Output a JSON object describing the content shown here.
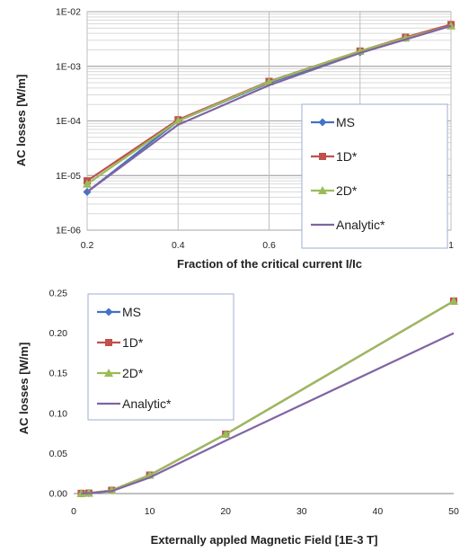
{
  "chart_data": [
    {
      "type": "line",
      "xlabel": "Fraction of the critical current I/Ic",
      "ylabel": "AC losses [W/m]",
      "yscale": "log",
      "xlim": [
        0.2,
        1.0
      ],
      "ylim": [
        1e-06,
        0.01
      ],
      "xticks": [
        "0.2",
        "0.4",
        "0.6",
        "0.8",
        "1"
      ],
      "yticks": [
        "1E-06",
        "1E-05",
        "1E-04",
        "1E-03",
        "1E-02"
      ],
      "grid": true,
      "legend_position": "right",
      "series": [
        {
          "name": "MS",
          "color": "#4472C4",
          "marker": "diamond",
          "x": [
            0.2,
            0.4,
            0.6,
            0.8,
            0.9,
            1.0
          ],
          "y": [
            5e-06,
            0.0001,
            0.0005,
            0.0018,
            0.0033,
            0.0058
          ]
        },
        {
          "name": "1D*",
          "color": "#C0504D",
          "marker": "square",
          "x": [
            0.2,
            0.4,
            0.6,
            0.8,
            0.9,
            1.0
          ],
          "y": [
            8e-06,
            0.000105,
            0.00053,
            0.0019,
            0.0034,
            0.0058
          ]
        },
        {
          "name": "2D*",
          "color": "#9BBB59",
          "marker": "triangle",
          "x": [
            0.2,
            0.4,
            0.6,
            0.8,
            0.9,
            1.0
          ],
          "y": [
            7e-06,
            0.0001,
            0.00052,
            0.0019,
            0.0033,
            0.0055
          ]
        },
        {
          "name": "Analytic*",
          "color": "#8064A2",
          "marker": "none",
          "x": [
            0.2,
            0.4,
            0.6,
            0.8,
            1.0
          ],
          "y": [
            5e-06,
            8.5e-05,
            0.00045,
            0.00175,
            0.0055
          ]
        }
      ]
    },
    {
      "type": "line",
      "xlabel": "Externally appled Magnetic Field [1E-3 T]",
      "ylabel": "AC losses [W/m]",
      "xlim": [
        0,
        50
      ],
      "ylim": [
        0,
        0.25
      ],
      "xticks": [
        "0",
        "10",
        "20",
        "30",
        "40",
        "50"
      ],
      "yticks": [
        "0.00",
        "0.05",
        "0.10",
        "0.15",
        "0.20",
        "0.25"
      ],
      "grid": false,
      "legend_position": "top-left",
      "series": [
        {
          "name": "MS",
          "color": "#4472C4",
          "marker": "diamond",
          "x": [
            1,
            2,
            5,
            10,
            20,
            50
          ],
          "y": [
            0.0002,
            0.0005,
            0.004,
            0.023,
            0.074,
            0.24
          ]
        },
        {
          "name": "1D*",
          "color": "#C0504D",
          "marker": "square",
          "x": [
            1,
            2,
            5,
            10,
            20,
            50
          ],
          "y": [
            0.0002,
            0.0005,
            0.004,
            0.023,
            0.074,
            0.24
          ]
        },
        {
          "name": "2D*",
          "color": "#9BBB59",
          "marker": "triangle",
          "x": [
            1,
            2,
            5,
            10,
            20,
            50
          ],
          "y": [
            0.0002,
            0.0005,
            0.004,
            0.023,
            0.074,
            0.24
          ]
        },
        {
          "name": "Analytic*",
          "color": "#8064A2",
          "marker": "none",
          "x": [
            1,
            2,
            5,
            10,
            20,
            50
          ],
          "y": [
            0.0002,
            0.0005,
            0.003,
            0.02,
            0.066,
            0.2
          ]
        }
      ]
    }
  ]
}
